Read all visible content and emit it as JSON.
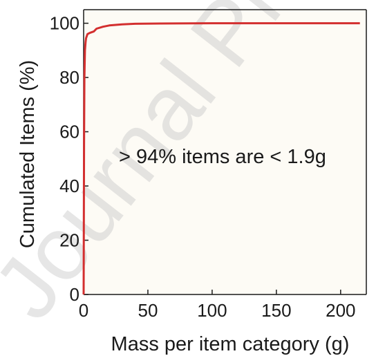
{
  "chart_data": {
    "type": "line",
    "xlabel": "Mass per item category (g)",
    "ylabel": "Cumulated Items (%)",
    "xlim": [
      0,
      220
    ],
    "ylim": [
      0,
      105
    ],
    "xticks": [
      0,
      50,
      100,
      150,
      200
    ],
    "yticks": [
      0,
      20,
      40,
      60,
      80,
      100
    ],
    "grid": false,
    "annotation": "> 94% items are < 1.9g",
    "series": [
      {
        "color": "#d32f2f",
        "x": [
          0,
          0.3,
          0.6,
          1,
          1.5,
          1.9,
          3,
          5,
          8,
          10,
          15,
          20,
          30,
          40,
          60,
          100,
          150,
          215
        ],
        "y": [
          0,
          55,
          80,
          90,
          93,
          94.5,
          96,
          96.5,
          97,
          98,
          98.7,
          99.2,
          99.6,
          99.8,
          99.9,
          100,
          100,
          100
        ]
      }
    ]
  },
  "watermark": "Journal Pre-proof",
  "colors": {
    "background": "#fdfbf5",
    "axis": "#1a1a1a",
    "series": "#d32f2f"
  }
}
